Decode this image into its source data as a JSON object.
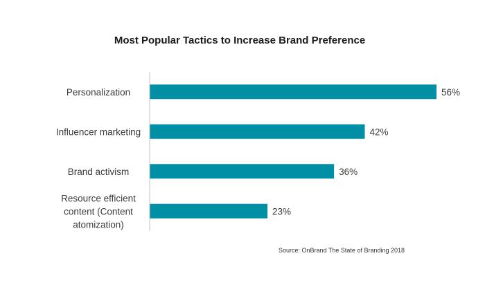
{
  "chart_data": {
    "type": "bar",
    "orientation": "horizontal",
    "title": "Most Popular Tactics to Increase Brand Preference",
    "categories": [
      [
        "Personalization"
      ],
      [
        "Influencer marketing"
      ],
      [
        "Brand activism"
      ],
      [
        "Resource efficient",
        "content (Content",
        "atomization)"
      ]
    ],
    "values": [
      56,
      42,
      36,
      23
    ],
    "value_labels": [
      "56%",
      "42%",
      "36%",
      "23%"
    ],
    "xlim": [
      0,
      56
    ],
    "grid": false,
    "legend": "none",
    "source": "Source: OnBrand The State of Branding 2018",
    "colors": {
      "bar": "#008FA5",
      "axis": "#bfbfbf"
    }
  }
}
